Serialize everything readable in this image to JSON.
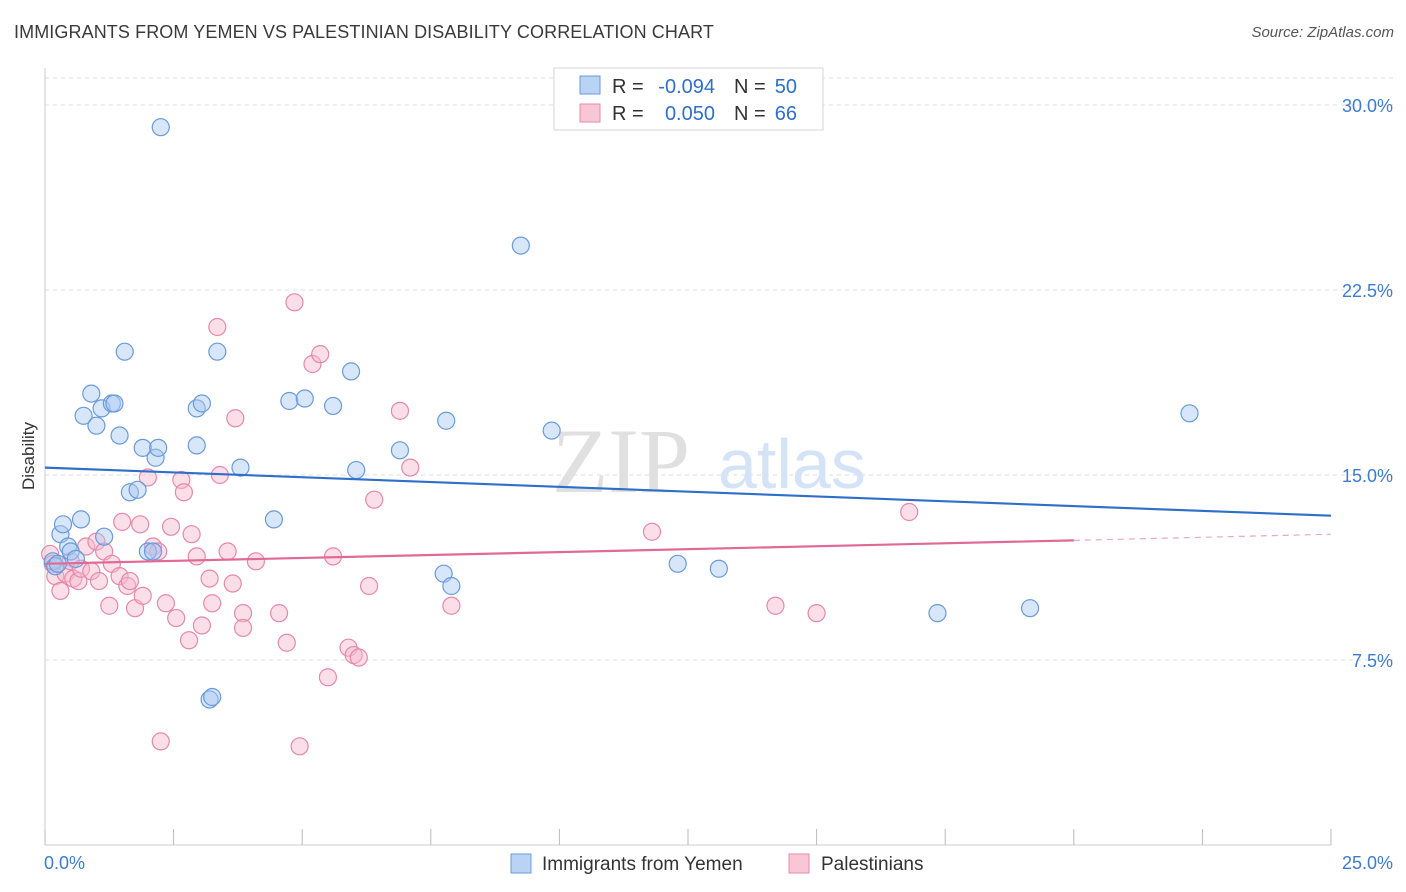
{
  "title": "IMMIGRANTS FROM YEMEN VS PALESTINIAN DISABILITY CORRELATION CHART",
  "source": "Source: ZipAtlas.com",
  "watermark": {
    "zip": "ZIP",
    "atlas": "atlas"
  },
  "colors": {
    "blue_fill": "#a9c8f2",
    "blue_stroke": "#6a9bd8",
    "blue_line": "#2e6fc9",
    "pink_fill": "#f6b8cc",
    "pink_stroke": "#e589a8",
    "pink_line": "#e06a95",
    "tick": "#3d7bd0",
    "grid": "#dddddd"
  },
  "legend_top": {
    "r_label": "R =",
    "n_label": "N =",
    "rows": [
      {
        "series": "blue",
        "r": "-0.094",
        "n": "50"
      },
      {
        "series": "pink",
        "r": "0.050",
        "n": "66"
      }
    ]
  },
  "chart_data": {
    "type": "scatter",
    "title": "IMMIGRANTS FROM YEMEN VS PALESTINIAN DISABILITY CORRELATION CHART",
    "xlabel": "",
    "ylabel": "Disability",
    "xlim": [
      0,
      25
    ],
    "ylim": [
      0,
      31.5
    ],
    "x_tick_labels": [
      "0.0%",
      "25.0%"
    ],
    "y_ticks": [
      7.5,
      15.0,
      22.5,
      30.0
    ],
    "y_tick_labels": [
      "7.5%",
      "15.0%",
      "22.5%",
      "30.0%"
    ],
    "grid": "horizontal dashed",
    "legend_position": "bottom",
    "series": [
      {
        "name": "Immigrants from Yemen",
        "color": "blue",
        "r": -0.094,
        "n": 50,
        "trend": {
          "x0": 0,
          "y0": 15.3,
          "x1": 25,
          "y1": 13.35
        },
        "points": [
          [
            0.15,
            11.5
          ],
          [
            0.2,
            11.3
          ],
          [
            0.3,
            12.6
          ],
          [
            0.35,
            13.0
          ],
          [
            0.45,
            12.1
          ],
          [
            0.5,
            11.9
          ],
          [
            0.6,
            11.6
          ],
          [
            0.7,
            13.2
          ],
          [
            0.75,
            17.4
          ],
          [
            0.9,
            18.3
          ],
          [
            1.0,
            17.0
          ],
          [
            1.1,
            17.7
          ],
          [
            1.15,
            12.5
          ],
          [
            1.3,
            17.9
          ],
          [
            1.35,
            17.9
          ],
          [
            1.45,
            16.6
          ],
          [
            1.55,
            20.0
          ],
          [
            1.65,
            14.3
          ],
          [
            1.8,
            14.4
          ],
          [
            1.9,
            16.1
          ],
          [
            2.0,
            11.9
          ],
          [
            2.1,
            11.9
          ],
          [
            2.15,
            15.7
          ],
          [
            2.2,
            16.1
          ],
          [
            2.25,
            29.1
          ],
          [
            2.95,
            16.2
          ],
          [
            2.95,
            17.7
          ],
          [
            3.05,
            17.9
          ],
          [
            3.2,
            5.9
          ],
          [
            3.25,
            6.0
          ],
          [
            3.35,
            20.0
          ],
          [
            3.8,
            15.3
          ],
          [
            4.45,
            13.2
          ],
          [
            4.75,
            18.0
          ],
          [
            5.05,
            18.1
          ],
          [
            5.6,
            17.8
          ],
          [
            5.95,
            19.2
          ],
          [
            6.05,
            15.2
          ],
          [
            6.9,
            16.0
          ],
          [
            7.8,
            17.2
          ],
          [
            7.75,
            11.0
          ],
          [
            7.9,
            10.5
          ],
          [
            9.25,
            24.3
          ],
          [
            9.85,
            16.8
          ],
          [
            12.3,
            11.4
          ],
          [
            13.1,
            11.2
          ],
          [
            17.35,
            9.4
          ],
          [
            19.15,
            9.6
          ],
          [
            22.25,
            17.5
          ],
          [
            0.25,
            11.4
          ]
        ]
      },
      {
        "name": "Palestinians",
        "color": "pink",
        "r": 0.05,
        "n": 66,
        "trend": {
          "x0": 0,
          "y0": 11.4,
          "x1": 20.0,
          "y1": 12.35,
          "dash_to_x": 25,
          "dash_to_y": 12.6
        },
        "points": [
          [
            0.1,
            11.8
          ],
          [
            0.15,
            11.4
          ],
          [
            0.2,
            10.9
          ],
          [
            0.3,
            10.3
          ],
          [
            0.4,
            11.0
          ],
          [
            0.5,
            11.5
          ],
          [
            0.55,
            10.8
          ],
          [
            0.65,
            10.7
          ],
          [
            0.7,
            11.2
          ],
          [
            0.8,
            12.1
          ],
          [
            0.9,
            11.1
          ],
          [
            1.0,
            12.3
          ],
          [
            1.05,
            10.7
          ],
          [
            1.15,
            11.9
          ],
          [
            1.25,
            9.7
          ],
          [
            1.3,
            11.4
          ],
          [
            1.45,
            10.9
          ],
          [
            1.5,
            13.1
          ],
          [
            1.6,
            10.5
          ],
          [
            1.65,
            10.7
          ],
          [
            1.75,
            9.6
          ],
          [
            1.85,
            13.0
          ],
          [
            1.9,
            10.1
          ],
          [
            2.0,
            14.9
          ],
          [
            2.1,
            12.1
          ],
          [
            2.2,
            11.9
          ],
          [
            2.25,
            4.2
          ],
          [
            2.35,
            9.8
          ],
          [
            2.45,
            12.9
          ],
          [
            2.55,
            9.2
          ],
          [
            2.65,
            14.8
          ],
          [
            2.7,
            14.3
          ],
          [
            2.8,
            8.3
          ],
          [
            2.85,
            12.6
          ],
          [
            2.95,
            11.7
          ],
          [
            3.05,
            8.9
          ],
          [
            3.25,
            9.8
          ],
          [
            3.2,
            10.8
          ],
          [
            3.35,
            21.0
          ],
          [
            3.4,
            15.0
          ],
          [
            3.55,
            11.9
          ],
          [
            3.65,
            10.6
          ],
          [
            3.7,
            17.3
          ],
          [
            3.85,
            9.4
          ],
          [
            3.85,
            8.8
          ],
          [
            4.1,
            11.5
          ],
          [
            4.55,
            9.4
          ],
          [
            4.7,
            8.2
          ],
          [
            4.85,
            22.0
          ],
          [
            4.95,
            4.0
          ],
          [
            5.2,
            19.5
          ],
          [
            5.35,
            19.9
          ],
          [
            5.5,
            6.8
          ],
          [
            5.6,
            11.7
          ],
          [
            5.9,
            8.0
          ],
          [
            6.0,
            7.7
          ],
          [
            6.1,
            7.6
          ],
          [
            6.3,
            10.5
          ],
          [
            6.4,
            14.0
          ],
          [
            6.9,
            17.6
          ],
          [
            7.1,
            15.3
          ],
          [
            7.9,
            9.7
          ],
          [
            11.8,
            12.7
          ],
          [
            14.2,
            9.7
          ],
          [
            15.0,
            9.4
          ],
          [
            16.8,
            13.5
          ]
        ]
      }
    ]
  }
}
